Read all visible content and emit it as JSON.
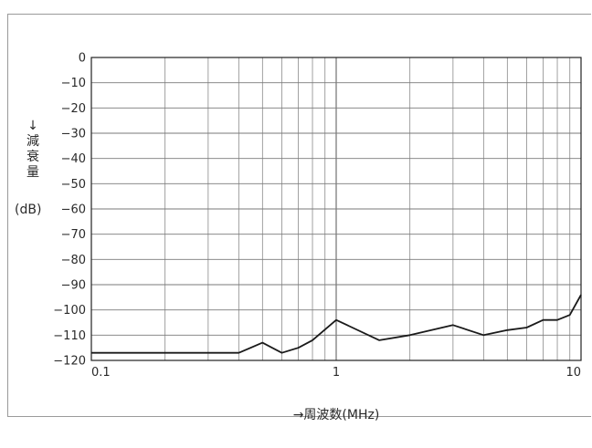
{
  "chart_data": {
    "type": "line",
    "xlabel": "→周波数(MHz)",
    "ylabel": "↓\n減\n衰\n量",
    "yunit": "(dB)",
    "xscale": "log",
    "xlim": [
      0.1,
      10
    ],
    "ylim": [
      -120,
      0
    ],
    "grid": true,
    "x_ticks": [
      {
        "value": 0.1,
        "label": "0.1"
      },
      {
        "value": 1,
        "label": "1"
      },
      {
        "value": 10,
        "label": "10"
      }
    ],
    "y_ticks": [
      {
        "value": 0,
        "label": "0"
      },
      {
        "value": -10,
        "label": "−10"
      },
      {
        "value": -20,
        "label": "−20"
      },
      {
        "value": -30,
        "label": "−30"
      },
      {
        "value": -40,
        "label": "−40"
      },
      {
        "value": -50,
        "label": "−50"
      },
      {
        "value": -60,
        "label": "−60"
      },
      {
        "value": -70,
        "label": "−70"
      },
      {
        "value": -80,
        "label": "−80"
      },
      {
        "value": -90,
        "label": "−90"
      },
      {
        "value": -100,
        "label": "−100"
      },
      {
        "value": -110,
        "label": "−110"
      },
      {
        "value": -120,
        "label": "−120"
      }
    ],
    "series": [
      {
        "color": "#1a1a1a",
        "x": [
          0.1,
          0.2,
          0.4,
          0.5,
          0.6,
          0.7,
          0.8,
          1.0,
          1.5,
          2.0,
          3.0,
          4.0,
          5.0,
          6.0,
          7.0,
          8.0,
          9.0,
          10.0
        ],
        "y": [
          -117,
          -117,
          -117,
          -113,
          -117,
          -115,
          -112,
          -104,
          -112,
          -110,
          -106,
          -110,
          -108,
          -107,
          -104,
          -104,
          -102,
          -94
        ]
      }
    ]
  }
}
